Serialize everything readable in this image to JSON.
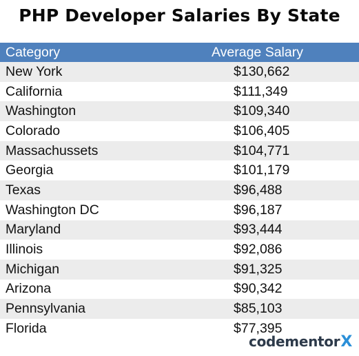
{
  "chart_data": {
    "type": "table",
    "title": "PHP Developer Salaries By State",
    "columns": [
      "Category",
      "Average Salary"
    ],
    "categories": [
      "New York",
      "California",
      "Washington",
      "Colorado",
      "Massachussets",
      "Georgia",
      "Texas",
      "Washington DC",
      "Maryland",
      "Illinois",
      "Michigan",
      "Arizona",
      "Pennsylvania",
      "Florida"
    ],
    "values": [
      130662,
      111349,
      109340,
      106405,
      104771,
      101179,
      96488,
      96187,
      93444,
      92086,
      91325,
      90342,
      85103,
      77395
    ],
    "value_labels": [
      "$130,662",
      "$111,349",
      "$109,340",
      "$106,405",
      "$104,771",
      "$101,179",
      "$96,488",
      "$96,187",
      "$93,444",
      "$92,086",
      "$91,325",
      "$90,342",
      "$85,103",
      "$77,395"
    ]
  },
  "colors": {
    "header_bg": "#4f81bd",
    "alt_row_bg": "#ececec",
    "logo_text": "#2d3a4a",
    "logo_accent": "#2a8fd8"
  },
  "logo": {
    "text": "codementor",
    "accent": "X"
  }
}
